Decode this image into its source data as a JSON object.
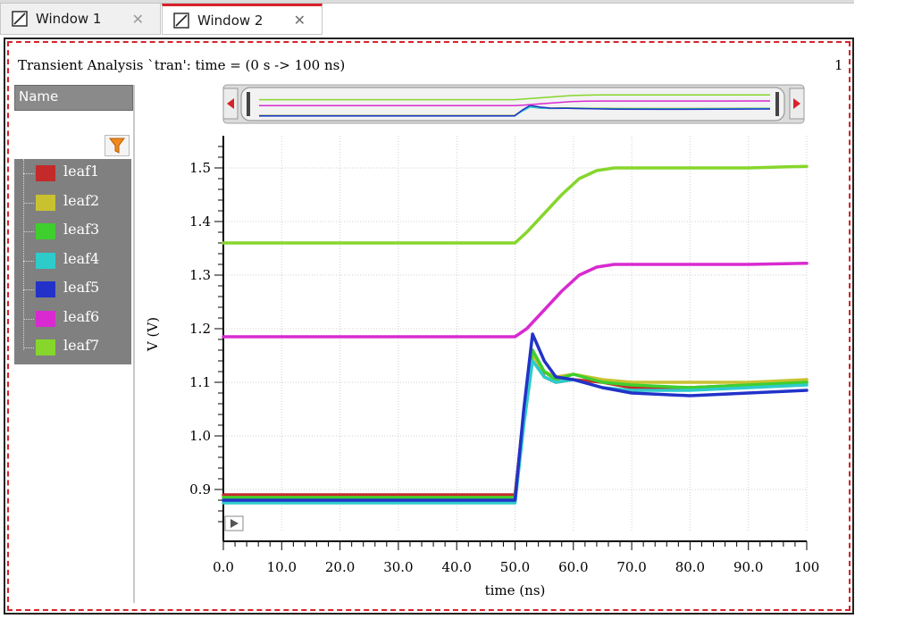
{
  "tabs": [
    {
      "label": "Window 1",
      "close": "✕",
      "active": false
    },
    {
      "label": "Window 2",
      "close": "✕",
      "active": true
    }
  ],
  "plot": {
    "number": "1"
  },
  "sidebar": {
    "header": "Name",
    "filter_icon": "funnel-icon",
    "items": [
      {
        "label": "leaf1",
        "color": "#c42a2a"
      },
      {
        "label": "leaf2",
        "color": "#c8c230"
      },
      {
        "label": "leaf3",
        "color": "#3ecf2e"
      },
      {
        "label": "leaf4",
        "color": "#2ecbcb"
      },
      {
        "label": "leaf5",
        "color": "#2232c8"
      },
      {
        "label": "leaf6",
        "color": "#d82ad0"
      },
      {
        "label": "leaf7",
        "color": "#86d62c"
      }
    ]
  },
  "chart_data": {
    "type": "line",
    "title": "Transient Analysis `tran': time = (0 s -> 100 ns)",
    "xlabel": "time (ns)",
    "ylabel": "V (V)",
    "xlim": [
      0,
      100
    ],
    "ylim": [
      0.82,
      1.56
    ],
    "x_ticks": [
      "0.0",
      "10.0",
      "20.0",
      "30.0",
      "40.0",
      "50.0",
      "60.0",
      "70.0",
      "80.0",
      "90.0",
      "100"
    ],
    "y_ticks": [
      "0.9",
      "1.0",
      "1.1",
      "1.2",
      "1.3",
      "1.4",
      "1.5"
    ],
    "grid": true,
    "series": [
      {
        "name": "leaf1",
        "color": "#c42a2a",
        "x": [
          0,
          50,
          51.5,
          53,
          55,
          57,
          60,
          65,
          70,
          80,
          90,
          100
        ],
        "y": [
          0.89,
          0.89,
          1.04,
          1.16,
          1.11,
          1.1,
          1.105,
          1.1,
          1.09,
          1.09,
          1.095,
          1.1
        ]
      },
      {
        "name": "leaf2",
        "color": "#c8c230",
        "x": [
          0,
          50,
          51.5,
          53,
          55,
          57,
          60,
          65,
          70,
          80,
          90,
          100
        ],
        "y": [
          0.885,
          0.885,
          1.03,
          1.15,
          1.12,
          1.11,
          1.115,
          1.105,
          1.1,
          1.1,
          1.1,
          1.105
        ]
      },
      {
        "name": "leaf3",
        "color": "#3ecf2e",
        "x": [
          0,
          50,
          51.5,
          53,
          55,
          57,
          60,
          65,
          70,
          80,
          90,
          100
        ],
        "y": [
          0.885,
          0.885,
          1.03,
          1.16,
          1.12,
          1.105,
          1.115,
          1.1,
          1.095,
          1.09,
          1.095,
          1.1
        ]
      },
      {
        "name": "leaf4",
        "color": "#2ecbcb",
        "x": [
          0,
          50,
          51.5,
          53,
          55,
          57,
          60,
          65,
          70,
          80,
          90,
          100
        ],
        "y": [
          0.875,
          0.875,
          1.02,
          1.14,
          1.11,
          1.1,
          1.105,
          1.09,
          1.085,
          1.085,
          1.09,
          1.095
        ]
      },
      {
        "name": "leaf5",
        "color": "#2232c8",
        "x": [
          0,
          50,
          51.5,
          53,
          55,
          57,
          60,
          65,
          70,
          80,
          90,
          100
        ],
        "y": [
          0.88,
          0.88,
          1.05,
          1.19,
          1.14,
          1.11,
          1.105,
          1.09,
          1.08,
          1.075,
          1.08,
          1.085
        ]
      },
      {
        "name": "leaf6",
        "color": "#d82ad0",
        "x": [
          0,
          50,
          52,
          55,
          58,
          61,
          64,
          67,
          70,
          80,
          90,
          100
        ],
        "y": [
          1.185,
          1.185,
          1.2,
          1.235,
          1.27,
          1.3,
          1.315,
          1.32,
          1.32,
          1.32,
          1.32,
          1.322
        ]
      },
      {
        "name": "leaf7",
        "color": "#86d62c",
        "x": [
          0,
          50,
          52,
          55,
          58,
          61,
          64,
          67,
          70,
          80,
          90,
          100
        ],
        "y": [
          1.36,
          1.36,
          1.38,
          1.415,
          1.45,
          1.48,
          1.495,
          1.5,
          1.5,
          1.5,
          1.5,
          1.503
        ]
      }
    ]
  }
}
